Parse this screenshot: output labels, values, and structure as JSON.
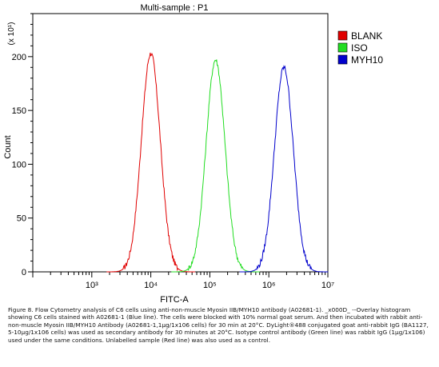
{
  "chart_data": {
    "type": "area",
    "title": "Multi-sample : P1",
    "xlabel": "FITC-A",
    "ylabel": "Count",
    "y_multiplier": "(x 10¹)",
    "x_scale": "log",
    "xlim": [
      100,
      10000000
    ],
    "ylim": [
      0,
      240
    ],
    "x_tick_labels": [
      "10³",
      "10⁴",
      "10⁵",
      "10⁶",
      "10⁷"
    ],
    "y_ticks": [
      "0",
      "50",
      "100",
      "150",
      "200"
    ],
    "y_tick_values": [
      0,
      50,
      100,
      150,
      200
    ],
    "grid": false,
    "legend_position": "top-right",
    "series": [
      {
        "name": "BLANK",
        "color": "#e00000",
        "peak_x": 10000,
        "peak_y": 203
      },
      {
        "name": "ISO",
        "color": "#22dd22",
        "peak_x": 125000,
        "peak_y": 197
      },
      {
        "name": "MYH10",
        "color": "#0000cc",
        "peak_x": 1800000,
        "peak_y": 190
      }
    ]
  },
  "caption": "Figure 8. Flow Cytometry analysis of C6 cells using anti-non-muscle Myosin IIB/MYH10 antibody (A02681-1). _x000D_ --Overlay histogram showing C6 cells stained with A02681-1 (Blue line). The cells were blocked with 10% normal goat serum. And then incubated with rabbit anti-non-muscle Myosin IIB/MYH10 Antibody (A02681-1,1µg/1x106 cells) for 30 min at 20°C. DyLight®488 conjugated goat anti-rabbit IgG (BA1127, 5-10µg/1x106 cells) was used as secondary antibody for 30 minutes at 20°C. Isotype control antibody (Green line) was rabbit IgG (1µg/1x106) used under the same conditions. Unlabelled sample (Red line) was also used as a control."
}
